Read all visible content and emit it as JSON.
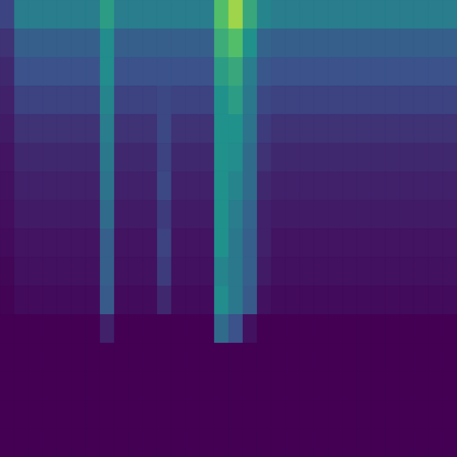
{
  "chart_data": {
    "type": "heatmap",
    "tick_labels": false,
    "grid": false,
    "color_range": [
      0,
      1
    ],
    "cells": [
      [
        0.21,
        0.42,
        0.42,
        0.42,
        0.42,
        0.42,
        0.42,
        0.55,
        0.42,
        0.42,
        0.42,
        0.42,
        0.42,
        0.42,
        0.42,
        0.7,
        0.85,
        0.6,
        0.45,
        0.42,
        0.42,
        0.42,
        0.42,
        0.42,
        0.42,
        0.42,
        0.42,
        0.42,
        0.42,
        0.42,
        0.42,
        0.42
      ],
      [
        0.15,
        0.3,
        0.3,
        0.3,
        0.3,
        0.3,
        0.3,
        0.48,
        0.3,
        0.3,
        0.3,
        0.3,
        0.3,
        0.3,
        0.3,
        0.62,
        0.7,
        0.5,
        0.32,
        0.3,
        0.3,
        0.3,
        0.3,
        0.3,
        0.3,
        0.3,
        0.3,
        0.3,
        0.3,
        0.3,
        0.3,
        0.3
      ],
      [
        0.12,
        0.25,
        0.25,
        0.25,
        0.25,
        0.25,
        0.25,
        0.48,
        0.25,
        0.25,
        0.25,
        0.25,
        0.25,
        0.25,
        0.25,
        0.55,
        0.6,
        0.42,
        0.27,
        0.25,
        0.25,
        0.25,
        0.25,
        0.25,
        0.25,
        0.25,
        0.25,
        0.25,
        0.25,
        0.25,
        0.25,
        0.25
      ],
      [
        0.1,
        0.2,
        0.2,
        0.2,
        0.2,
        0.2,
        0.2,
        0.45,
        0.2,
        0.2,
        0.2,
        0.22,
        0.2,
        0.2,
        0.2,
        0.5,
        0.55,
        0.4,
        0.22,
        0.2,
        0.2,
        0.2,
        0.2,
        0.2,
        0.2,
        0.2,
        0.2,
        0.2,
        0.2,
        0.2,
        0.2,
        0.2
      ],
      [
        0.08,
        0.15,
        0.15,
        0.15,
        0.15,
        0.15,
        0.15,
        0.42,
        0.15,
        0.15,
        0.15,
        0.22,
        0.15,
        0.15,
        0.15,
        0.5,
        0.5,
        0.38,
        0.18,
        0.15,
        0.15,
        0.15,
        0.15,
        0.15,
        0.15,
        0.15,
        0.15,
        0.15,
        0.15,
        0.15,
        0.15,
        0.15
      ],
      [
        0.06,
        0.12,
        0.12,
        0.12,
        0.12,
        0.12,
        0.12,
        0.4,
        0.12,
        0.12,
        0.12,
        0.2,
        0.12,
        0.12,
        0.12,
        0.5,
        0.48,
        0.35,
        0.15,
        0.12,
        0.12,
        0.12,
        0.12,
        0.12,
        0.12,
        0.12,
        0.12,
        0.12,
        0.12,
        0.12,
        0.12,
        0.12
      ],
      [
        0.05,
        0.1,
        0.1,
        0.1,
        0.1,
        0.1,
        0.1,
        0.38,
        0.1,
        0.1,
        0.1,
        0.22,
        0.1,
        0.1,
        0.1,
        0.5,
        0.45,
        0.35,
        0.12,
        0.1,
        0.1,
        0.1,
        0.1,
        0.1,
        0.1,
        0.1,
        0.1,
        0.1,
        0.1,
        0.1,
        0.1,
        0.1
      ],
      [
        0.04,
        0.08,
        0.08,
        0.08,
        0.08,
        0.08,
        0.08,
        0.35,
        0.08,
        0.08,
        0.08,
        0.18,
        0.08,
        0.08,
        0.08,
        0.5,
        0.42,
        0.32,
        0.1,
        0.08,
        0.08,
        0.08,
        0.08,
        0.08,
        0.08,
        0.08,
        0.08,
        0.08,
        0.08,
        0.08,
        0.08,
        0.08
      ],
      [
        0.03,
        0.06,
        0.06,
        0.06,
        0.06,
        0.06,
        0.06,
        0.3,
        0.06,
        0.06,
        0.06,
        0.2,
        0.06,
        0.06,
        0.06,
        0.5,
        0.4,
        0.3,
        0.1,
        0.06,
        0.06,
        0.06,
        0.06,
        0.06,
        0.06,
        0.06,
        0.06,
        0.06,
        0.06,
        0.06,
        0.06,
        0.06
      ],
      [
        0.02,
        0.05,
        0.05,
        0.05,
        0.05,
        0.05,
        0.05,
        0.3,
        0.05,
        0.05,
        0.05,
        0.18,
        0.05,
        0.05,
        0.05,
        0.45,
        0.4,
        0.3,
        0.08,
        0.05,
        0.05,
        0.05,
        0.05,
        0.05,
        0.05,
        0.05,
        0.05,
        0.05,
        0.05,
        0.05,
        0.05,
        0.05
      ],
      [
        0.01,
        0.03,
        0.03,
        0.03,
        0.03,
        0.03,
        0.03,
        0.28,
        0.03,
        0.03,
        0.03,
        0.12,
        0.03,
        0.03,
        0.03,
        0.48,
        0.4,
        0.28,
        0.05,
        0.03,
        0.03,
        0.03,
        0.03,
        0.03,
        0.03,
        0.03,
        0.03,
        0.03,
        0.03,
        0.03,
        0.03,
        0.03
      ],
      [
        0,
        0,
        0,
        0,
        0,
        0,
        0,
        0.1,
        0,
        0,
        0,
        0,
        0,
        0,
        0,
        0.35,
        0.25,
        0.05,
        0,
        0,
        0,
        0,
        0,
        0,
        0,
        0,
        0,
        0,
        0,
        0,
        0,
        0
      ],
      [
        0,
        0,
        0,
        0,
        0,
        0,
        0,
        0,
        0,
        0,
        0,
        0,
        0,
        0,
        0,
        0,
        0,
        0,
        0,
        0,
        0,
        0,
        0,
        0,
        0,
        0,
        0,
        0,
        0,
        0,
        0,
        0
      ],
      [
        0,
        0,
        0,
        0,
        0,
        0,
        0,
        0,
        0,
        0,
        0,
        0,
        0,
        0,
        0,
        0,
        0,
        0,
        0,
        0,
        0,
        0,
        0,
        0,
        0,
        0,
        0,
        0,
        0,
        0,
        0,
        0
      ],
      [
        0,
        0,
        0,
        0,
        0,
        0,
        0,
        0,
        0,
        0,
        0,
        0,
        0,
        0,
        0,
        0,
        0,
        0,
        0,
        0,
        0,
        0,
        0,
        0,
        0,
        0,
        0,
        0,
        0,
        0,
        0,
        0
      ],
      [
        0,
        0,
        0,
        0,
        0,
        0,
        0,
        0,
        0,
        0,
        0,
        0,
        0,
        0,
        0,
        0,
        0,
        0,
        0,
        0,
        0,
        0,
        0,
        0,
        0,
        0,
        0,
        0,
        0,
        0,
        0,
        0
      ]
    ]
  }
}
